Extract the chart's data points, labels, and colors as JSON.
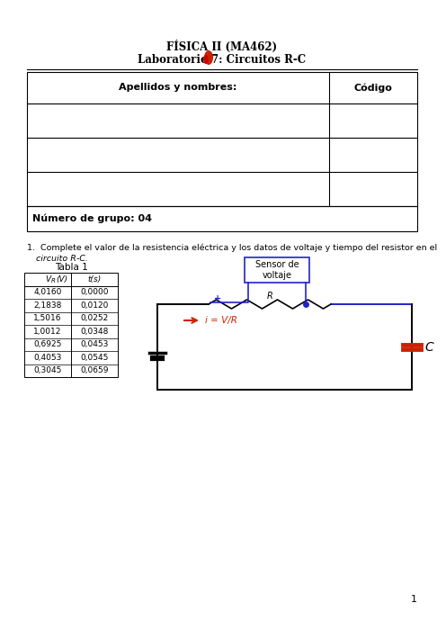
{
  "title_line1": "FÍSICA II (MA462)",
  "title_line2": "Laboratorio 7: Circuitos R-C",
  "header_col1": "Apellidos y nombres:",
  "header_col2": "Código",
  "group_label": "Número de grupo: 04",
  "question_text": "1.  Complete el valor de la resistencia eléctrica y los datos de voltaje y tiempo del resistor en el\n      circuito R-C.",
  "table1_title": "Tabla 1",
  "table1_headers": [
    "VR(V)",
    "t(s)"
  ],
  "table1_data": [
    [
      "4,0160",
      "0,0000"
    ],
    [
      "2,1838",
      "0,0120"
    ],
    [
      "1,5016",
      "0,0252"
    ],
    [
      "1,0012",
      "0,0348"
    ],
    [
      "0,6925",
      "0,0453"
    ],
    [
      "0,4053",
      "0,0545"
    ],
    [
      "0,3045",
      "0,0659"
    ]
  ],
  "sensor_label": "Sensor de\nvoltaje",
  "resistor_label": "R",
  "current_label": "i = V/R",
  "capacitor_label": "C",
  "page_number": "1",
  "bg_color": "#ffffff",
  "text_color": "#000000",
  "blue_color": "#2222cc",
  "red_color": "#cc2200",
  "dark_red_color": "#cc0000"
}
